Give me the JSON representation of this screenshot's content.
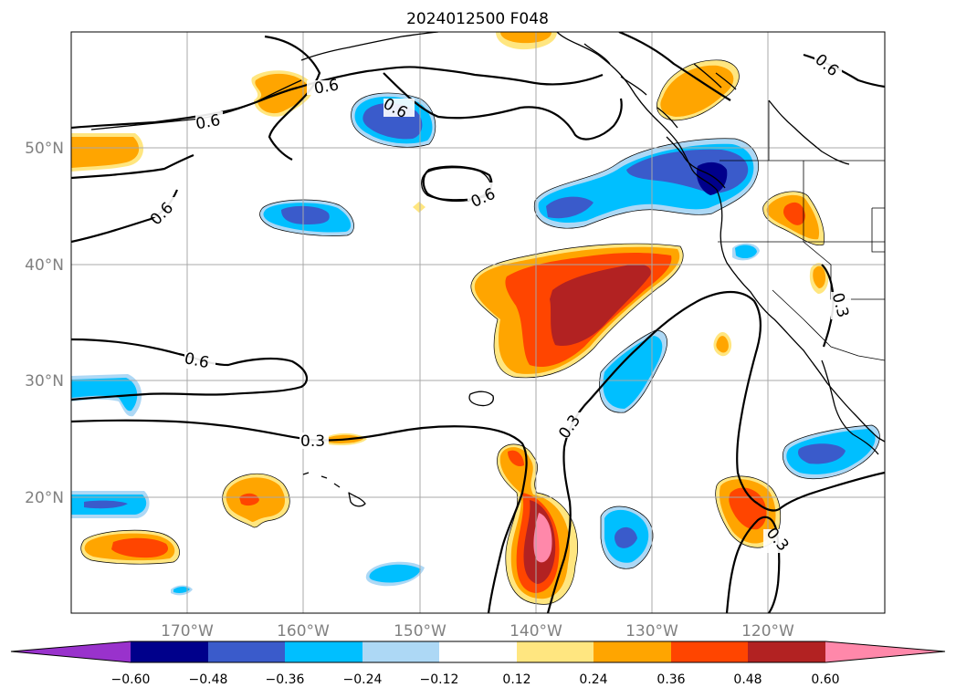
{
  "title": "2024012500 F048",
  "colors": {
    "neg_060": "#9932cc",
    "neg_048": "#00008b",
    "neg_036": "#3a5bcb",
    "neg_024": "#00bfff",
    "neg_012": "#add8f5",
    "zero": "#ffffff",
    "pos_012": "#ffe680",
    "pos_024": "#ffa500",
    "pos_036": "#ff4500",
    "pos_048": "#b22222",
    "pos_060": "#ff88aa",
    "grid": "#a8a8a8",
    "axis_labels": "#808080"
  },
  "lat_labels": [
    "50°N",
    "40°N",
    "30°N",
    "20°N"
  ],
  "lon_labels": [
    "170°W",
    "160°W",
    "150°W",
    "140°W",
    "130°W",
    "120°W"
  ],
  "colorbar": {
    "tick_labels": [
      "−0.60",
      "−0.48",
      "−0.36",
      "−0.24",
      "−0.12",
      "0.12",
      "0.24",
      "0.36",
      "0.48",
      "0.60"
    ],
    "extend": "both"
  },
  "contour_labels": [
    "0.6",
    "0.6",
    "0.6",
    "0.6",
    "0.6",
    "0.6",
    "0.6",
    "0.3",
    "0.3",
    "0.3",
    "0.3"
  ]
}
